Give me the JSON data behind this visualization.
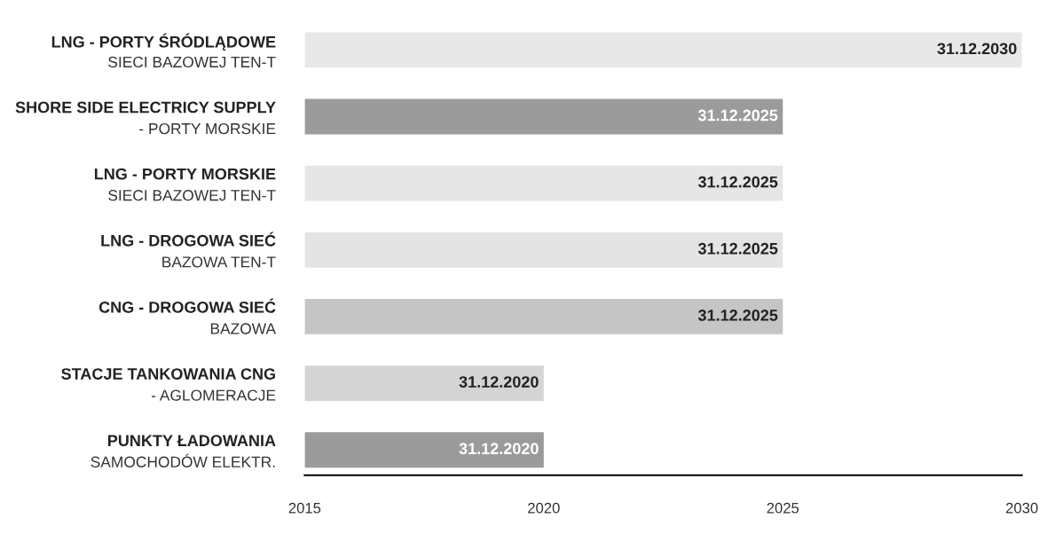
{
  "chart_data": {
    "type": "bar",
    "orientation": "horizontal",
    "categories": [
      "LNG - PORTY ŚRÓDLĄDOWE\nSIECI BAZOWEJ TEN-T",
      "SHORE SIDE ELECTRICY SUPPLY\n- PORTY MORSKIE",
      "LNG - PORTY MORSKIE\nSIECI BAZOWEJ TEN-T",
      "LNG - DROGOWA SIEĆ\nBAZOWA TEN-T",
      "CNG - DROGOWA SIEĆ\nBAZOWA",
      "STACJE TANKOWANIA CNG\n- AGLOMERACJE",
      "PUNKTY ŁADOWANIA\nSAMOCHODÓW ELEKTR."
    ],
    "base": [
      2015,
      2015,
      2015,
      2015,
      2015,
      2015,
      2015
    ],
    "values": [
      15,
      10,
      10,
      10,
      10,
      5,
      5
    ],
    "value_labels": [
      "31.12.2030",
      "31.12.2025",
      "31.12.2025",
      "31.12.2025",
      "31.12.2025",
      "31.12.2020",
      "31.12.2020"
    ],
    "colors": [
      "#e8e8e8",
      "#9a9b9a",
      "#e6e6e6",
      "#e4e4e4",
      "#c5c5c5",
      "#d4d4d4",
      "#9b9b9b"
    ],
    "xlim": [
      2015,
      2030
    ],
    "xticks": [
      2015,
      2020,
      2025,
      2030
    ],
    "grid": false,
    "legend": false
  }
}
